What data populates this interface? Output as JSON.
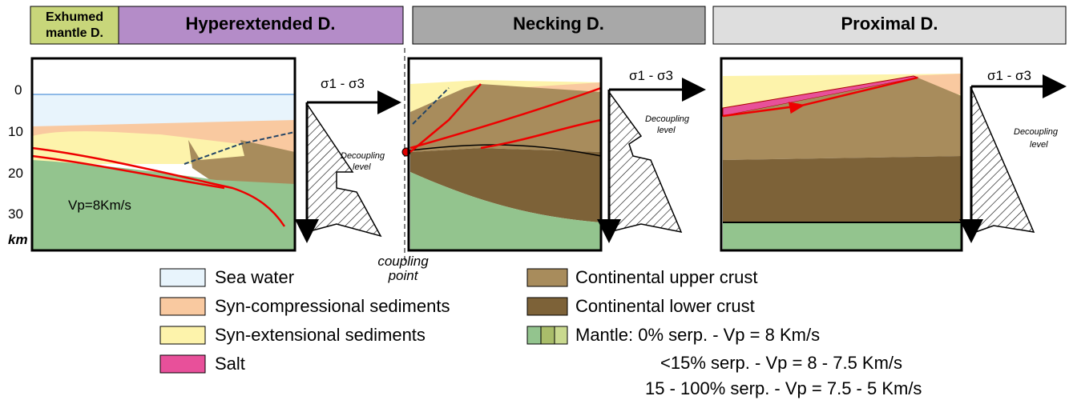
{
  "header": {
    "domains": [
      {
        "line1": "Exhumed",
        "line2": "mantle D."
      },
      {
        "label": "Hyperextended D."
      },
      {
        "label": "Necking D."
      },
      {
        "label": "Proximal D."
      }
    ]
  },
  "depth_axis": {
    "labels": [
      "0",
      "10",
      "20",
      "30"
    ],
    "unit": "km"
  },
  "panel_1": {
    "velocity": "Vp=8Km/s"
  },
  "stress": {
    "label": "σ1 - σ3",
    "decoupling_line1": "Decoupling",
    "decoupling_line2": "level"
  },
  "coupling": {
    "line1": "coupling",
    "line2": "point"
  },
  "legend": {
    "left": [
      "Sea water",
      "Syn-compressional sediments",
      "Syn-extensional sediments",
      "Salt"
    ],
    "right": [
      "Continental upper crust",
      "Continental lower crust"
    ],
    "mantle": [
      "Mantle: 0% serp. - Vp = 8 Km/s",
      "<15% serp. - Vp = 8 - 7.5 Km/s",
      "15 - 100% serp. - Vp = 7.5 - 5 Km/s"
    ]
  }
}
